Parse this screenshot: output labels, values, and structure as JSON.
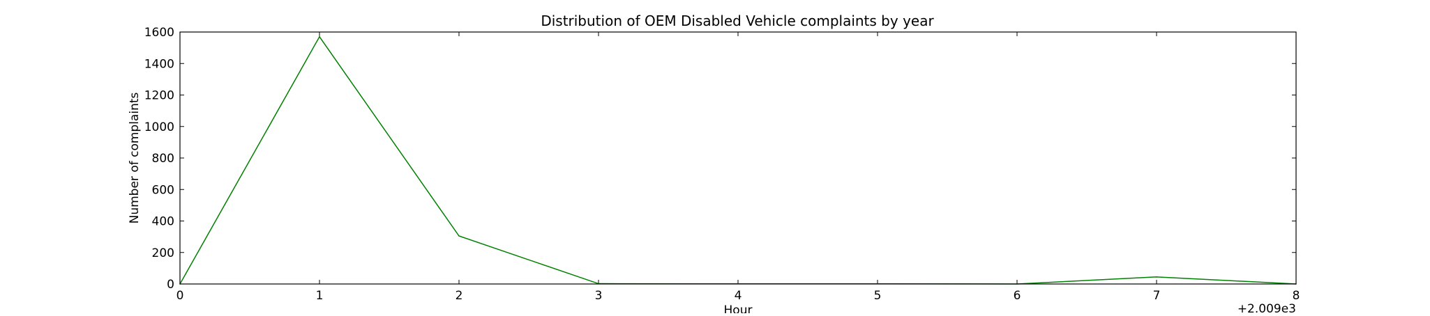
{
  "chart_data": {
    "type": "line",
    "title": "Distribution of  OEM Disabled Vehicle complaints by year",
    "xlabel": "Hour",
    "ylabel": "Number of complaints",
    "x_offset_label": "+2.009e3",
    "xlim": [
      0,
      8
    ],
    "ylim": [
      0,
      1600
    ],
    "x_ticks": [
      0,
      1,
      2,
      3,
      4,
      5,
      6,
      7,
      8
    ],
    "x_tick_labels": [
      "0",
      "1",
      "2",
      "3",
      "4",
      "5",
      "6",
      "7",
      "8"
    ],
    "y_ticks": [
      0,
      200,
      400,
      600,
      800,
      1000,
      1200,
      1400,
      1600
    ],
    "y_tick_labels": [
      "0",
      "200",
      "400",
      "600",
      "800",
      "1000",
      "1200",
      "1400",
      "1600"
    ],
    "grid": false,
    "series": [
      {
        "color": "#008000",
        "x": [
          0,
          1,
          2,
          3,
          4,
          5,
          6,
          7,
          8
        ],
        "y": [
          0,
          1570,
          305,
          2,
          1,
          1,
          0,
          45,
          0
        ]
      }
    ]
  }
}
